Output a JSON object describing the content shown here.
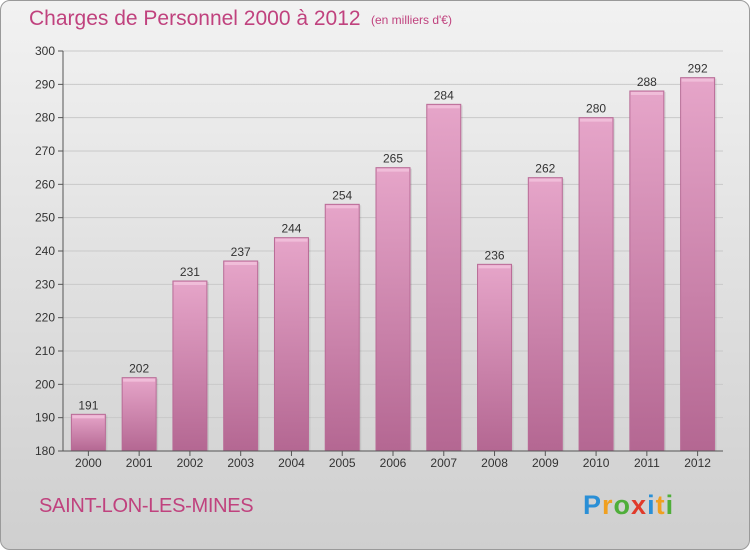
{
  "chart_data": {
    "type": "bar",
    "title": "Charges de Personnel 2000 à 2012",
    "subtitle": "(en milliers d'€)",
    "categories": [
      "2000",
      "2001",
      "2002",
      "2003",
      "2004",
      "2005",
      "2006",
      "2007",
      "2008",
      "2009",
      "2010",
      "2011",
      "2012"
    ],
    "values": [
      191,
      202,
      231,
      237,
      244,
      254,
      265,
      284,
      236,
      262,
      280,
      288,
      292
    ],
    "ylim": [
      180,
      300
    ],
    "yticks": [
      180,
      190,
      200,
      210,
      220,
      230,
      240,
      250,
      260,
      270,
      280,
      290,
      300
    ],
    "grid": true,
    "bar_color": "#d88ab4"
  },
  "commune": "SAINT-LON-LES-MINES",
  "brand": {
    "letters": [
      "P",
      "r",
      "o",
      "x",
      "i",
      "t",
      "i"
    ],
    "colors": [
      "#2a8fd6",
      "#f0a020",
      "#4fae3a",
      "#e03a2a",
      "#2a8fd6",
      "#f0a020",
      "#4fae3a"
    ]
  }
}
